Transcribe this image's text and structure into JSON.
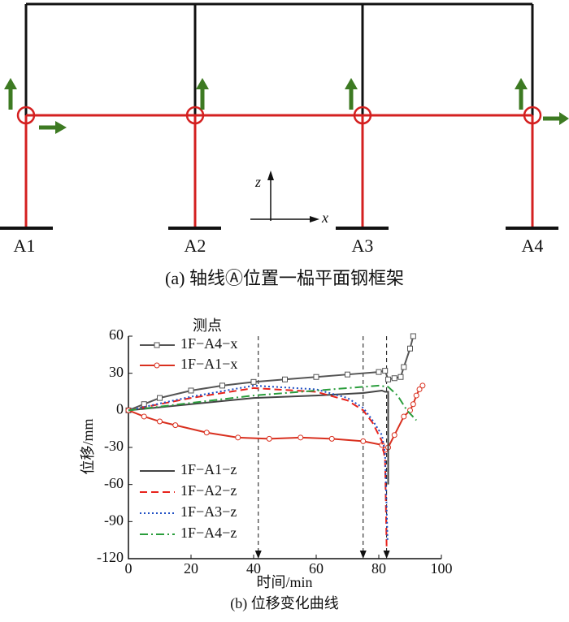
{
  "diagram": {
    "labels": [
      "A1",
      "A2",
      "A3",
      "A4"
    ],
    "axis_z": "z",
    "axis_x": "x",
    "caption": "(a) 轴线Ⓐ位置一榀平面钢框架"
  },
  "chart_data": {
    "type": "line",
    "caption": "(b) 位移变化曲线",
    "xlabel": "时间/min",
    "ylabel": "位移/mm",
    "legend_title": "测点",
    "xlim": [
      0,
      100
    ],
    "xticks": [
      0,
      20,
      40,
      60,
      80,
      100
    ],
    "ylim": [
      -120,
      60
    ],
    "yticks": [
      -120,
      -90,
      -60,
      -30,
      0,
      30,
      60
    ],
    "vlines": [
      41.5,
      75,
      82.5
    ],
    "series": [
      {
        "name": "1F−A4−x",
        "color": "#555555",
        "style": "solid",
        "marker": "square",
        "x": [
          0,
          5,
          10,
          20,
          30,
          40,
          50,
          60,
          70,
          80,
          82,
          83,
          85,
          87,
          88,
          90,
          91
        ],
        "values": [
          0,
          5,
          10,
          16,
          20,
          23,
          25,
          27,
          29,
          31,
          32,
          25,
          26,
          27,
          35,
          50,
          60
        ]
      },
      {
        "name": "1F−A1−x",
        "color": "#d9301f",
        "style": "solid",
        "marker": "circle",
        "x": [
          0,
          5,
          10,
          15,
          25,
          35,
          45,
          55,
          65,
          75,
          81,
          82,
          83,
          85,
          88,
          90,
          91,
          92,
          93,
          94
        ],
        "values": [
          0,
          -5,
          -9,
          -12,
          -18,
          -22,
          -23,
          -22,
          -23,
          -25,
          -28,
          -32,
          -30,
          -20,
          -5,
          0,
          5,
          12,
          17,
          20
        ]
      },
      {
        "name": "1F−A1−z",
        "color": "#444444",
        "style": "solid",
        "marker": "none",
        "x": [
          0,
          20,
          40,
          60,
          75,
          81,
          82,
          83,
          83
        ],
        "values": [
          0,
          5,
          10,
          12,
          14,
          16,
          15,
          15,
          -60
        ]
      },
      {
        "name": "1F−A2−z",
        "color": "#e8231c",
        "style": "dashed",
        "marker": "none",
        "x": [
          0,
          20,
          40,
          60,
          70,
          75,
          78,
          81,
          82,
          82.5
        ],
        "values": [
          0,
          10,
          18,
          15,
          8,
          0,
          -10,
          -25,
          -40,
          -110
        ]
      },
      {
        "name": "1F−A3−z",
        "color": "#1f4fc4",
        "style": "dotted",
        "marker": "none",
        "x": [
          0,
          20,
          40,
          60,
          70,
          75,
          78,
          81,
          82,
          82.8
        ],
        "values": [
          0,
          11,
          20,
          17,
          10,
          2,
          -8,
          -20,
          -35,
          -105
        ]
      },
      {
        "name": "1F−A4−z",
        "color": "#2a9d3c",
        "style": "dashdot",
        "marker": "none",
        "x": [
          0,
          20,
          40,
          55,
          65,
          75,
          80,
          83,
          86,
          89,
          92
        ],
        "values": [
          0,
          6,
          12,
          15,
          17,
          19,
          20,
          19,
          12,
          0,
          -8
        ]
      }
    ]
  }
}
